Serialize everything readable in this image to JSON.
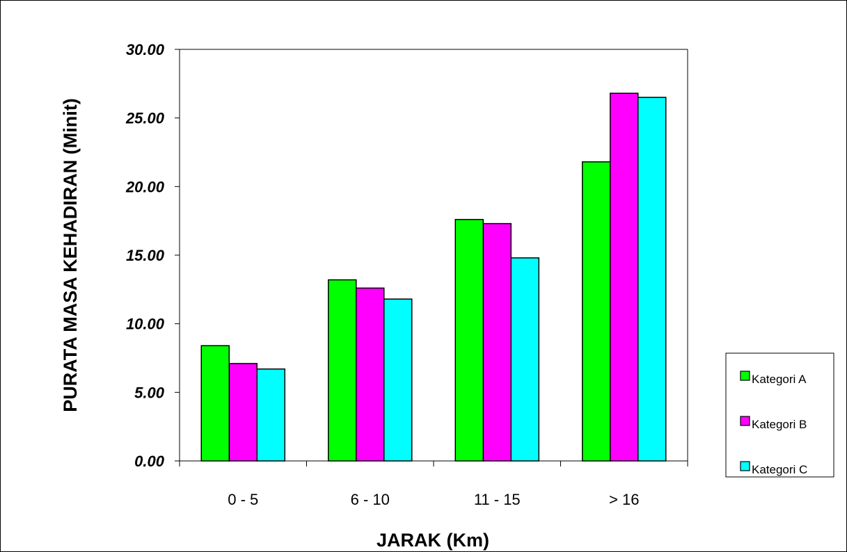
{
  "chart_data": {
    "type": "bar",
    "categories": [
      "0 - 5",
      "6 - 10",
      "11 - 15",
      "> 16"
    ],
    "series": [
      {
        "name": "Kategori A",
        "color": "#00ff00",
        "values": [
          8.4,
          13.2,
          17.6,
          21.8
        ]
      },
      {
        "name": "Kategori B",
        "color": "#ff00ff",
        "values": [
          7.1,
          12.6,
          17.3,
          26.8
        ]
      },
      {
        "name": "Kategori C",
        "color": "#00ffff",
        "values": [
          6.7,
          11.8,
          14.8,
          26.5
        ]
      }
    ],
    "xlabel": "JARAK (Km)",
    "ylabel": "PURATA MASA KEHADIRAN (Minit)",
    "ylim": [
      0,
      30
    ],
    "yticks": [
      "0.00",
      "5.00",
      "10.00",
      "15.00",
      "20.00",
      "25.00",
      "30.00"
    ],
    "grid": "none",
    "legend_position": "right"
  }
}
